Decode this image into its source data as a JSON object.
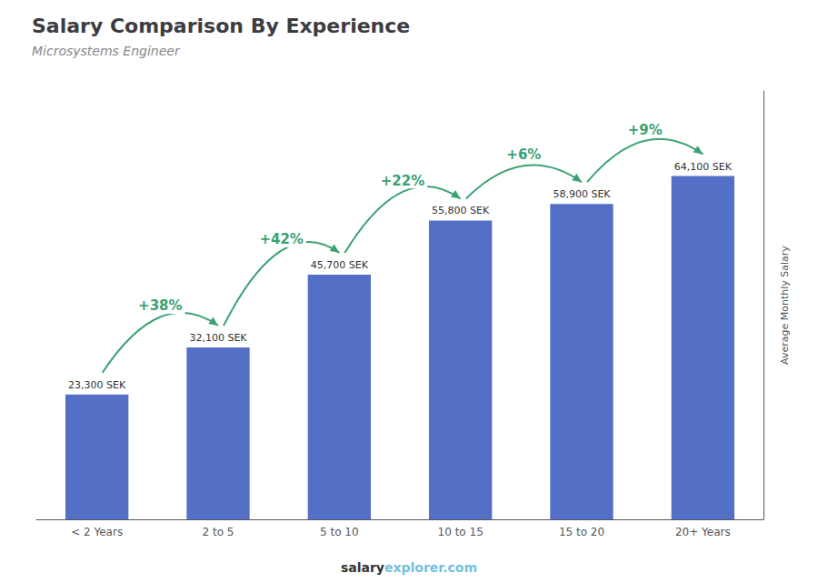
{
  "chart_data": {
    "type": "bar",
    "title": "Salary Comparison By Experience",
    "subtitle": "Microsystems Engineer",
    "categories": [
      "< 2 Years",
      "2 to 5",
      "5 to 10",
      "10 to 15",
      "15 to 20",
      "20+ Years"
    ],
    "values": [
      23300,
      32100,
      45700,
      55800,
      58900,
      64100
    ],
    "value_labels": [
      "23,300 SEK",
      "32,100 SEK",
      "45,700 SEK",
      "55,800 SEK",
      "58,900 SEK",
      "64,100 SEK"
    ],
    "data_labels": true,
    "annotations": [
      "+38%",
      "+42%",
      "+22%",
      "+6%",
      "+9%"
    ],
    "ylabel": "Average Monthly Salary",
    "footer": [
      "salary",
      "explorer.com"
    ],
    "ylim": [
      0,
      80000
    ],
    "tick_labels": "x",
    "grid": false
  }
}
